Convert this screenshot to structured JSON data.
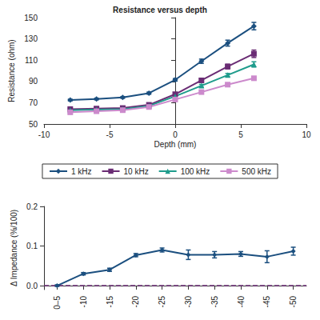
{
  "chart_data": [
    {
      "type": "line",
      "title": "Resistance versus depth",
      "x_label": "Depth (mm)",
      "y_label": "Resistance (ohm)",
      "x": [
        -8,
        -6,
        -4,
        -2,
        0,
        2,
        4,
        6
      ],
      "xlim": [
        -10,
        10
      ],
      "xticks": [
        -10,
        -5,
        0,
        5,
        10
      ],
      "ylim": [
        50,
        150
      ],
      "yticks": [
        50,
        70,
        90,
        110,
        130,
        150
      ],
      "grid": false,
      "legend": "bottom",
      "series": [
        {
          "name": "1 kHz",
          "color": "#1b4f7f",
          "marker": "diamond",
          "values": [
            72.5,
            73.5,
            75,
            79,
            91.5,
            109,
            126,
            142
          ],
          "errors": [
            0.8,
            0.8,
            0.8,
            1,
            1.2,
            2,
            2.8,
            3.5
          ]
        },
        {
          "name": "10 kHz",
          "color": "#6a2c74",
          "marker": "square",
          "values": [
            64,
            64.5,
            65,
            68,
            78,
            91,
            104,
            116
          ],
          "errors": [
            0.8,
            0.8,
            0.8,
            1,
            1.2,
            1.8,
            2.2,
            3.5
          ]
        },
        {
          "name": "100 kHz",
          "color": "#1f9c8c",
          "marker": "triangle",
          "values": [
            63,
            63.5,
            64,
            67,
            76,
            86,
            96,
            106
          ],
          "errors": [
            0.6,
            0.6,
            0.6,
            0.8,
            1,
            1.2,
            1.5,
            2.5
          ]
        },
        {
          "name": "500 kHz",
          "color": "#cc8acc",
          "marker": "square",
          "values": [
            61,
            62,
            63,
            66,
            73,
            80,
            87,
            93
          ],
          "errors": [
            0.5,
            0.5,
            0.5,
            0.6,
            0.8,
            1,
            1,
            1
          ]
        }
      ]
    },
    {
      "type": "line",
      "y_label": "Δ Impedance (%/100)",
      "categories": [
        "0–5",
        "-10",
        "-15",
        "-20",
        "-25",
        "-30",
        "-35",
        "-40",
        "-45",
        "-50"
      ],
      "values": [
        0,
        0.03,
        0.04,
        0.077,
        0.09,
        0.078,
        0.078,
        0.08,
        0.073,
        0.087
      ],
      "errors": [
        0.002,
        0.003,
        0.004,
        0.004,
        0.005,
        0.012,
        0.008,
        0.006,
        0.015,
        0.01
      ],
      "color": "#1b4f7f",
      "marker": "diamond",
      "ylim": [
        -0.01,
        0.2
      ],
      "yticks": [
        {
          "value": 0,
          "label": "0.0"
        },
        {
          "value": 0.1,
          "label": "0.1"
        },
        {
          "value": 0.2,
          "label": "0.2"
        }
      ],
      "grid": false,
      "reference_lines": [
        {
          "value": 0,
          "line_style": "dashed",
          "color": "#6a2c74"
        }
      ]
    }
  ]
}
